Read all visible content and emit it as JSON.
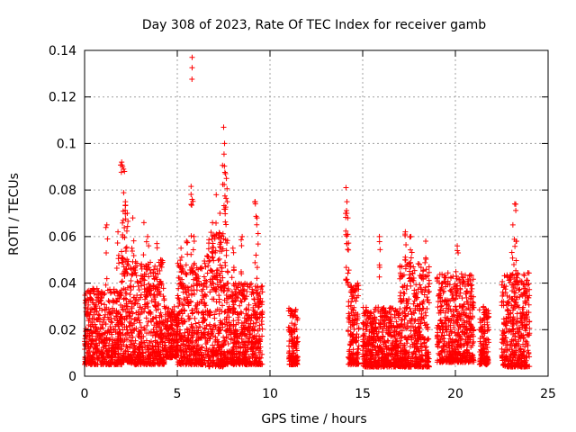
{
  "chart_data": {
    "type": "scatter",
    "title": "Day 308 of 2023, Rate Of TEC Index for receiver gamb",
    "xlabel": "GPS time / hours",
    "ylabel": "ROTI / TECUs",
    "xlim": [
      0,
      25
    ],
    "ylim": [
      0,
      0.14
    ],
    "xticks": [
      "0",
      "5",
      "10",
      "15",
      "20",
      "25"
    ],
    "yticks": [
      "0",
      "0.02",
      "0.04",
      "0.06",
      "0.08",
      "0.1",
      "0.12",
      "0.14"
    ],
    "grid": true,
    "marker": "plus",
    "color": "#ff0000",
    "series": [
      {
        "segments": [
          {
            "x": [
              0.0,
              2.0
            ],
            "ymin": 0.005,
            "ymax": 0.038
          },
          {
            "x": [
              2.0,
              2.5
            ],
            "ymin": 0.006,
            "ymax": 0.052
          },
          {
            "x": [
              2.5,
              4.3
            ],
            "ymin": 0.005,
            "ymax": 0.05
          },
          {
            "x": [
              4.3,
              5.0
            ],
            "ymin": 0.008,
            "ymax": 0.03
          },
          {
            "x": [
              5.0,
              6.5
            ],
            "ymin": 0.005,
            "ymax": 0.05
          },
          {
            "x": [
              6.5,
              7.5
            ],
            "ymin": 0.004,
            "ymax": 0.062
          },
          {
            "x": [
              7.5,
              9.6
            ],
            "ymin": 0.005,
            "ymax": 0.04
          },
          {
            "x": [
              11.0,
              11.5
            ],
            "ymin": 0.005,
            "ymax": 0.03
          },
          {
            "x": [
              14.2,
              14.8
            ],
            "ymin": 0.005,
            "ymax": 0.04
          },
          {
            "x": [
              15.0,
              17.0
            ],
            "ymin": 0.004,
            "ymax": 0.03
          },
          {
            "x": [
              17.0,
              18.6
            ],
            "ymin": 0.004,
            "ymax": 0.05
          },
          {
            "x": [
              19.0,
              21.0
            ],
            "ymin": 0.006,
            "ymax": 0.045
          },
          {
            "x": [
              21.3,
              21.8
            ],
            "ymin": 0.005,
            "ymax": 0.03
          },
          {
            "x": [
              22.5,
              24.0
            ],
            "ymin": 0.004,
            "ymax": 0.045
          }
        ],
        "spikes": [
          {
            "x": 2.0,
            "y": 0.092
          },
          {
            "x": 2.05,
            "y": 0.09
          },
          {
            "x": 2.1,
            "y": 0.089
          },
          {
            "x": 2.15,
            "y": 0.088
          },
          {
            "x": 2.2,
            "y": 0.075
          },
          {
            "x": 2.3,
            "y": 0.07
          },
          {
            "x": 1.8,
            "y": 0.062
          },
          {
            "x": 1.2,
            "y": 0.065
          },
          {
            "x": 2.6,
            "y": 0.068
          },
          {
            "x": 3.2,
            "y": 0.066
          },
          {
            "x": 3.4,
            "y": 0.06
          },
          {
            "x": 3.9,
            "y": 0.057
          },
          {
            "x": 4.1,
            "y": 0.05
          },
          {
            "x": 5.2,
            "y": 0.055
          },
          {
            "x": 5.5,
            "y": 0.058
          },
          {
            "x": 5.8,
            "y": 0.137
          },
          {
            "x": 5.8,
            "y": 0.076
          },
          {
            "x": 5.9,
            "y": 0.06
          },
          {
            "x": 6.9,
            "y": 0.066
          },
          {
            "x": 7.1,
            "y": 0.078
          },
          {
            "x": 7.3,
            "y": 0.07
          },
          {
            "x": 7.5,
            "y": 0.107
          },
          {
            "x": 7.55,
            "y": 0.1
          },
          {
            "x": 7.6,
            "y": 0.087
          },
          {
            "x": 7.65,
            "y": 0.085
          },
          {
            "x": 7.7,
            "y": 0.075
          },
          {
            "x": 8.0,
            "y": 0.055
          },
          {
            "x": 8.5,
            "y": 0.06
          },
          {
            "x": 9.2,
            "y": 0.075
          },
          {
            "x": 9.3,
            "y": 0.068
          },
          {
            "x": 14.1,
            "y": 0.081
          },
          {
            "x": 14.15,
            "y": 0.075
          },
          {
            "x": 14.2,
            "y": 0.068
          },
          {
            "x": 14.15,
            "y": 0.057
          },
          {
            "x": 15.9,
            "y": 0.06
          },
          {
            "x": 17.3,
            "y": 0.062
          },
          {
            "x": 17.6,
            "y": 0.06
          },
          {
            "x": 18.4,
            "y": 0.058
          },
          {
            "x": 20.1,
            "y": 0.056
          },
          {
            "x": 23.2,
            "y": 0.074
          },
          {
            "x": 23.1,
            "y": 0.065
          },
          {
            "x": 23.3,
            "y": 0.058
          }
        ]
      }
    ]
  }
}
